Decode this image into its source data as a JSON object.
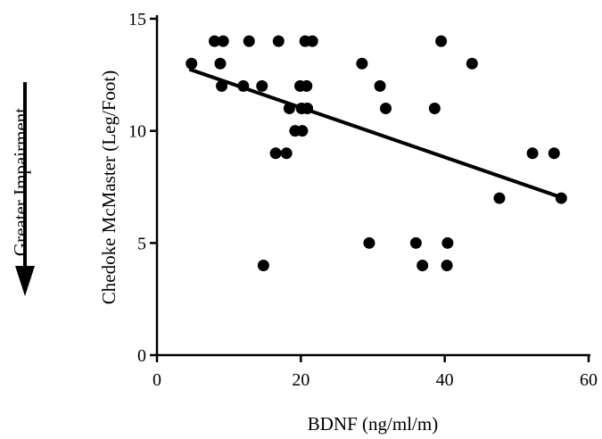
{
  "chart_data": {
    "type": "scatter",
    "title": "",
    "xlabel": "BDNF (ng/ml/m)",
    "ylabel": "Chedoke McMaster  (Leg/Foot)",
    "side_annotation": "Greater Impairment",
    "xlim": [
      0,
      60
    ],
    "ylim": [
      0,
      15
    ],
    "xticks": [
      0,
      20,
      40,
      60
    ],
    "yticks": [
      0,
      5,
      10,
      15
    ],
    "grid": false,
    "legend": "none",
    "points": [
      {
        "x": 4.8,
        "y": 13
      },
      {
        "x": 8.0,
        "y": 14
      },
      {
        "x": 8.8,
        "y": 13
      },
      {
        "x": 9.2,
        "y": 14
      },
      {
        "x": 9.0,
        "y": 12
      },
      {
        "x": 12.0,
        "y": 12
      },
      {
        "x": 12.8,
        "y": 14
      },
      {
        "x": 14.6,
        "y": 12
      },
      {
        "x": 14.8,
        "y": 4
      },
      {
        "x": 16.5,
        "y": 9
      },
      {
        "x": 16.9,
        "y": 14
      },
      {
        "x": 18.0,
        "y": 9
      },
      {
        "x": 18.4,
        "y": 11
      },
      {
        "x": 19.2,
        "y": 10
      },
      {
        "x": 19.9,
        "y": 12
      },
      {
        "x": 20.1,
        "y": 11
      },
      {
        "x": 20.2,
        "y": 10
      },
      {
        "x": 20.8,
        "y": 12
      },
      {
        "x": 20.6,
        "y": 14
      },
      {
        "x": 20.9,
        "y": 11
      },
      {
        "x": 21.6,
        "y": 14
      },
      {
        "x": 28.5,
        "y": 13
      },
      {
        "x": 29.5,
        "y": 5
      },
      {
        "x": 31.0,
        "y": 12
      },
      {
        "x": 31.8,
        "y": 11
      },
      {
        "x": 36.0,
        "y": 5
      },
      {
        "x": 36.9,
        "y": 4
      },
      {
        "x": 38.6,
        "y": 11
      },
      {
        "x": 39.5,
        "y": 14
      },
      {
        "x": 40.4,
        "y": 5
      },
      {
        "x": 40.3,
        "y": 4
      },
      {
        "x": 43.8,
        "y": 13
      },
      {
        "x": 47.6,
        "y": 7
      },
      {
        "x": 52.2,
        "y": 9
      },
      {
        "x": 55.2,
        "y": 9
      },
      {
        "x": 56.2,
        "y": 7
      }
    ],
    "trendline": {
      "x_start": 4.5,
      "x_end": 56.5,
      "y_start": 12.75,
      "y_end": 7.0
    }
  },
  "colors": {
    "marker": "#000000",
    "line": "#000000",
    "axis": "#000000"
  }
}
